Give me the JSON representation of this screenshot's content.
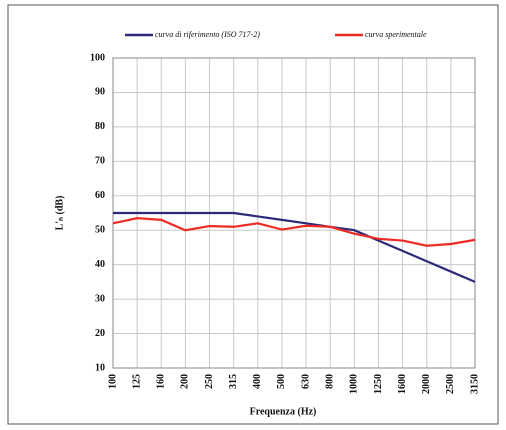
{
  "chart_data": {
    "type": "line",
    "categories": [
      "100",
      "125",
      "160",
      "200",
      "250",
      "315",
      "400",
      "500",
      "630",
      "800",
      "1000",
      "1250",
      "1600",
      "2000",
      "2500",
      "3150"
    ],
    "series": [
      {
        "name": "curva di riferimento (ISO 717-2)",
        "color": "#2e2a7a",
        "values": [
          55,
          55,
          55,
          55,
          55,
          55,
          54,
          53,
          52,
          51,
          50,
          47,
          44,
          41,
          38,
          35
        ]
      },
      {
        "name": "curva sperimentale",
        "color": "#ee2a24",
        "values": [
          52,
          53.5,
          53,
          50,
          51.2,
          51,
          52,
          50.2,
          51.3,
          51,
          49,
          47.5,
          47,
          45.5,
          46,
          47.2
        ]
      }
    ],
    "xlabel": "Frequenza (Hz)",
    "ylabel": "L'ₙ (dB)",
    "ylim": [
      10,
      100
    ],
    "yticks": [
      10,
      20,
      30,
      40,
      50,
      60,
      70,
      80,
      90,
      100
    ],
    "grid": true,
    "legend": "top"
  }
}
